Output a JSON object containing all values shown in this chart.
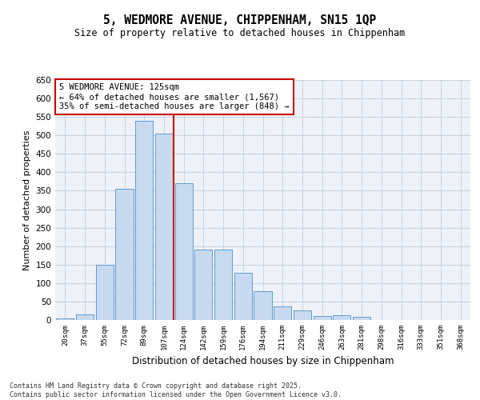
{
  "title_line1": "5, WEDMORE AVENUE, CHIPPENHAM, SN15 1QP",
  "title_line2": "Size of property relative to detached houses in Chippenham",
  "xlabel": "Distribution of detached houses by size in Chippenham",
  "ylabel": "Number of detached properties",
  "categories": [
    "20sqm",
    "37sqm",
    "55sqm",
    "72sqm",
    "89sqm",
    "107sqm",
    "124sqm",
    "142sqm",
    "159sqm",
    "176sqm",
    "194sqm",
    "211sqm",
    "229sqm",
    "246sqm",
    "263sqm",
    "281sqm",
    "298sqm",
    "316sqm",
    "333sqm",
    "351sqm",
    "368sqm"
  ],
  "values": [
    5,
    15,
    150,
    355,
    540,
    505,
    370,
    190,
    190,
    128,
    78,
    37,
    27,
    10,
    13,
    8,
    0,
    0,
    0,
    0,
    0
  ],
  "bar_color": "#c8daf0",
  "bar_edge_color": "#6699cc",
  "grid_color": "#c8d4e4",
  "background_color": "#eef2f8",
  "vline_color": "#cc0000",
  "annotation_title": "5 WEDMORE AVENUE: 125sqm",
  "annotation_line1": "← 64% of detached houses are smaller (1,567)",
  "annotation_line2": "35% of semi-detached houses are larger (848) →",
  "annotation_box_color": "#cc0000",
  "footer_line1": "Contains HM Land Registry data © Crown copyright and database right 2025.",
  "footer_line2": "Contains public sector information licensed under the Open Government Licence v3.0.",
  "ylim": [
    0,
    650
  ],
  "yticks": [
    0,
    50,
    100,
    150,
    200,
    250,
    300,
    350,
    400,
    450,
    500,
    550,
    600,
    650
  ]
}
